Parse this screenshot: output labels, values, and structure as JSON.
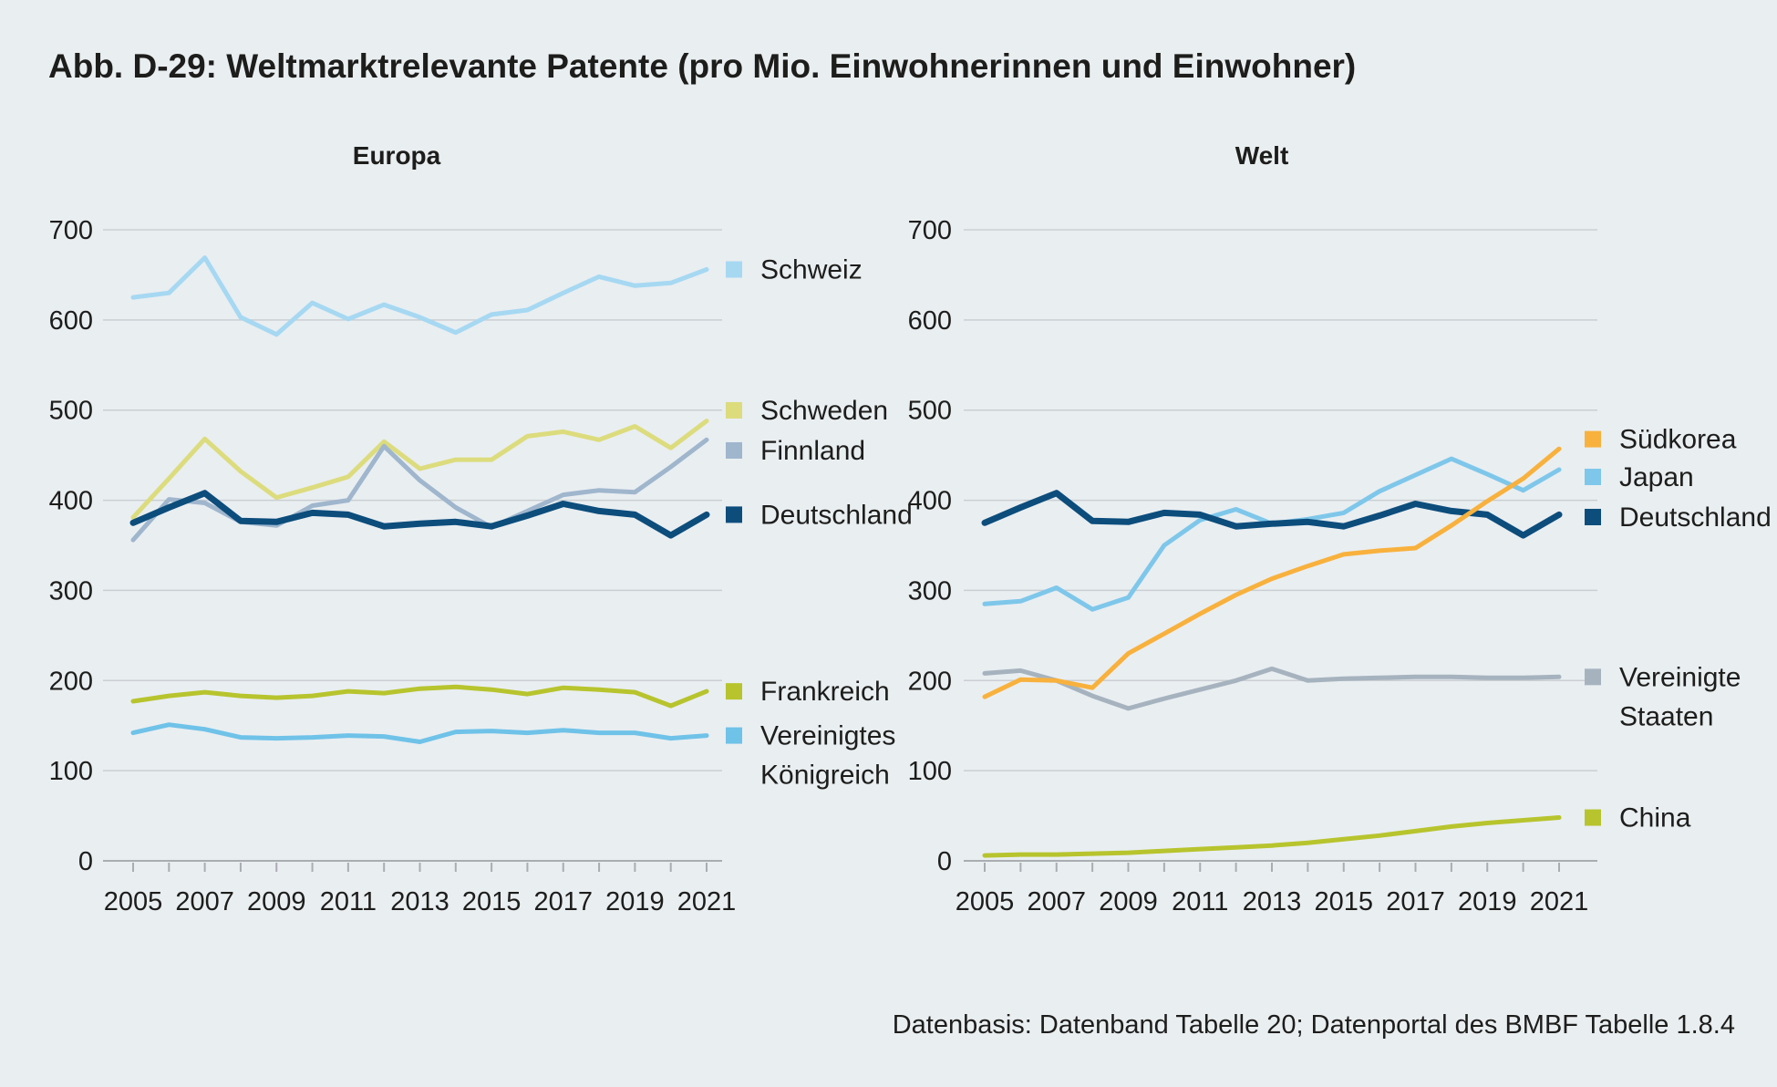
{
  "title": "Abb. D-29: Weltmarktrelevante Patente (pro Mio. Einwohnerinnen und Einwohner)",
  "footer": "Datenbasis: Datenband Tabelle 20; Datenportal des BMBF Tabelle 1.8.4",
  "colors": {
    "background": "#e9eef1",
    "grid": "#cbcfd3",
    "axis": "#a9adb1",
    "text": "#1d1d1b",
    "schweiz": "#a6d8f2",
    "schweden": "#dcdc7d",
    "finnland": "#9fb6cd",
    "deutschland": "#0c4d7c",
    "frankreich": "#b7c42d",
    "vereinigtes_koenigreich": "#6fc2e8",
    "suedkorea": "#f8b13d",
    "japan": "#7ec7ea",
    "vereinigte_staaten": "#a6b3bf",
    "china": "#b7c42d"
  },
  "chart_data": [
    {
      "type": "line",
      "title": "Europa",
      "x": [
        2005,
        2006,
        2007,
        2008,
        2009,
        2010,
        2011,
        2012,
        2013,
        2014,
        2015,
        2016,
        2017,
        2018,
        2019,
        2020,
        2021
      ],
      "x_tick_labels": [
        2005,
        2007,
        2009,
        2011,
        2013,
        2015,
        2017,
        2019,
        2021
      ],
      "ylim": [
        0,
        700
      ],
      "y_ticks": [
        0,
        100,
        200,
        300,
        400,
        500,
        600,
        700
      ],
      "grid": true,
      "legend_position": "right",
      "series": [
        {
          "name": "Schweiz",
          "color": "#a6d8f2",
          "width": 5,
          "label_lines": [
            "Schweiz"
          ],
          "values": [
            625,
            630,
            669,
            603,
            584,
            619,
            601,
            617,
            603,
            586,
            606,
            611,
            630,
            648,
            638,
            641,
            656
          ]
        },
        {
          "name": "Schweden",
          "color": "#dcdc7d",
          "width": 5,
          "label_lines": [
            "Schweden"
          ],
          "values": [
            381,
            424,
            468,
            432,
            403,
            414,
            426,
            465,
            435,
            445,
            445,
            471,
            476,
            467,
            482,
            458,
            488
          ]
        },
        {
          "name": "Finnland",
          "color": "#9fb6cd",
          "width": 5,
          "label_lines": [
            "Finnland"
          ],
          "values": [
            356,
            401,
            397,
            376,
            372,
            394,
            400,
            460,
            422,
            392,
            370,
            388,
            406,
            411,
            409,
            437,
            467
          ]
        },
        {
          "name": "Vereinigtes Königreich",
          "color": "#6fc2e8",
          "width": 5,
          "label_lines": [
            "Vereinigtes",
            "Königreich"
          ],
          "values": [
            142,
            151,
            146,
            137,
            136,
            137,
            139,
            138,
            132,
            143,
            144,
            142,
            145,
            142,
            142,
            136,
            139
          ]
        },
        {
          "name": "Frankreich",
          "color": "#b7c42d",
          "width": 5,
          "label_lines": [
            "Frankreich"
          ],
          "values": [
            177,
            183,
            187,
            183,
            181,
            183,
            188,
            186,
            191,
            193,
            190,
            185,
            192,
            190,
            187,
            172,
            188
          ]
        },
        {
          "name": "Deutschland",
          "color": "#0c4d7c",
          "width": 7,
          "label_lines": [
            "Deutschland"
          ],
          "values": [
            375,
            392,
            408,
            377,
            376,
            386,
            384,
            371,
            374,
            376,
            371,
            383,
            396,
            388,
            384,
            361,
            384
          ]
        }
      ]
    },
    {
      "type": "line",
      "title": "Welt",
      "x": [
        2005,
        2006,
        2007,
        2008,
        2009,
        2010,
        2011,
        2012,
        2013,
        2014,
        2015,
        2016,
        2017,
        2018,
        2019,
        2020,
        2021
      ],
      "x_tick_labels": [
        2005,
        2007,
        2009,
        2011,
        2013,
        2015,
        2017,
        2019,
        2021
      ],
      "ylim": [
        0,
        700
      ],
      "y_ticks": [
        0,
        100,
        200,
        300,
        400,
        500,
        600,
        700
      ],
      "grid": true,
      "legend_position": "right",
      "series": [
        {
          "name": "Vereinigte Staaten",
          "color": "#a6b3bf",
          "width": 5,
          "label_lines": [
            "Vereinigte",
            "Staaten"
          ],
          "values": [
            208,
            211,
            200,
            183,
            169,
            180,
            190,
            200,
            213,
            200,
            202,
            203,
            204,
            204,
            203,
            203,
            204
          ]
        },
        {
          "name": "China",
          "color": "#b7c42d",
          "width": 5,
          "label_lines": [
            "China"
          ],
          "values": [
            6,
            7,
            7,
            8,
            9,
            11,
            13,
            15,
            17,
            20,
            24,
            28,
            33,
            38,
            42,
            45,
            48
          ]
        },
        {
          "name": "Japan",
          "color": "#7ec7ea",
          "width": 5,
          "label_lines": [
            "Japan"
          ],
          "values": [
            285,
            288,
            303,
            279,
            292,
            350,
            378,
            390,
            374,
            379,
            386,
            410,
            428,
            446,
            429,
            411,
            434
          ]
        },
        {
          "name": "Deutschland",
          "color": "#0c4d7c",
          "width": 7,
          "label_lines": [
            "Deutschland"
          ],
          "values": [
            375,
            392,
            408,
            377,
            376,
            386,
            384,
            371,
            374,
            376,
            371,
            383,
            396,
            388,
            384,
            361,
            384
          ]
        },
        {
          "name": "Südkorea",
          "color": "#f8b13d",
          "width": 5,
          "label_lines": [
            "Südkorea"
          ],
          "values": [
            182,
            201,
            200,
            192,
            230,
            252,
            274,
            295,
            313,
            327,
            340,
            344,
            347,
            372,
            399,
            424,
            457
          ]
        }
      ]
    }
  ]
}
